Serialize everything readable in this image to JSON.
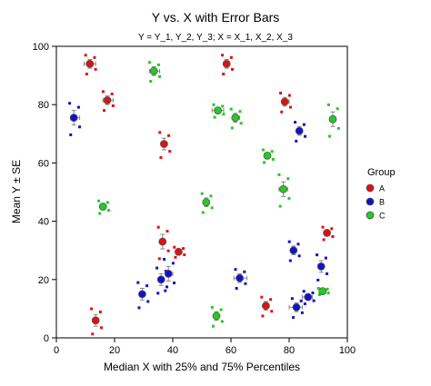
{
  "chart_data": {
    "type": "scatter",
    "title": "Y vs. X with Error Bars",
    "subtitle": "Y = Y_1, Y_2, Y_3; X = X_1, X_2, X_3",
    "xlabel": "Median X with 25% and 75% Percentiles",
    "ylabel": "Mean Y ± SE",
    "xlim": [
      0,
      100
    ],
    "ylim": [
      0,
      100
    ],
    "x_ticks": [
      "0",
      "20",
      "40",
      "60",
      "80",
      "100"
    ],
    "y_ticks": [
      "0",
      "20",
      "40",
      "60",
      "80",
      "100"
    ],
    "grid": false,
    "legend": {
      "title": "Group",
      "position": "right",
      "entries": [
        {
          "label": "A",
          "color": "#dd1111"
        },
        {
          "label": "B",
          "color": "#1111cc"
        },
        {
          "label": "C",
          "color": "#22cc22"
        }
      ]
    },
    "series": [
      {
        "name": "A",
        "color": "#dd1111",
        "points": [
          {
            "x": 11.5,
            "y": 94,
            "xlo": 9.5,
            "xhi": 13.5,
            "se": 1.5
          },
          {
            "x": 17.5,
            "y": 81.5,
            "xlo": 16,
            "xhi": 19.5,
            "se": 1.5
          },
          {
            "x": 58.5,
            "y": 94,
            "xlo": 58,
            "xhi": 59,
            "se": 1.5
          },
          {
            "x": 78.5,
            "y": 81,
            "xlo": 77.5,
            "xhi": 80,
            "se": 1.5
          },
          {
            "x": 37,
            "y": 66.5,
            "xlo": 36.5,
            "xhi": 37.5,
            "se": 2
          },
          {
            "x": 36.5,
            "y": 33,
            "xlo": 36,
            "xhi": 37,
            "se": 2.5
          },
          {
            "x": 42,
            "y": 29.5,
            "xlo": 41,
            "xhi": 43,
            "se": 0.8
          },
          {
            "x": 13.5,
            "y": 6,
            "xlo": 13,
            "xhi": 14.5,
            "se": 2
          },
          {
            "x": 72,
            "y": 11,
            "xlo": 71.5,
            "xhi": 73,
            "se": 1.5
          },
          {
            "x": 93,
            "y": 36,
            "xlo": 92.5,
            "xhi": 93.5,
            "se": 1
          }
        ]
      },
      {
        "name": "B",
        "color": "#1111cc",
        "points": [
          {
            "x": 6,
            "y": 75.5,
            "xlo": 5,
            "xhi": 8,
            "se": 2.5
          },
          {
            "x": 83.5,
            "y": 71,
            "xlo": 83,
            "xhi": 84,
            "se": 1.5
          },
          {
            "x": 29.5,
            "y": 15,
            "xlo": 29,
            "xhi": 30,
            "se": 2
          },
          {
            "x": 36,
            "y": 20,
            "xlo": 35,
            "xhi": 37,
            "se": 2
          },
          {
            "x": 38.5,
            "y": 22,
            "xlo": 37.5,
            "xhi": 40,
            "se": 2.5
          },
          {
            "x": 63,
            "y": 20.5,
            "xlo": 61,
            "xhi": 65.5,
            "se": 1.5
          },
          {
            "x": 81.5,
            "y": 30,
            "xlo": 80.5,
            "xhi": 82.5,
            "se": 1.5
          },
          {
            "x": 82.5,
            "y": 10.5,
            "xlo": 80,
            "xhi": 84.5,
            "se": 1.5
          },
          {
            "x": 86.5,
            "y": 14,
            "xlo": 84.5,
            "xhi": 88,
            "se": 1
          },
          {
            "x": 91,
            "y": 24.5,
            "xlo": 90.5,
            "xhi": 91.5,
            "se": 2
          }
        ]
      },
      {
        "name": "C",
        "color": "#22cc22",
        "points": [
          {
            "x": 33.5,
            "y": 91.5,
            "xlo": 32,
            "xhi": 35.5,
            "se": 1.5
          },
          {
            "x": 55.5,
            "y": 78,
            "xlo": 53.5,
            "xhi": 57.5,
            "se": 1
          },
          {
            "x": 61.5,
            "y": 75.5,
            "xlo": 60.5,
            "xhi": 63,
            "se": 1.5
          },
          {
            "x": 72.5,
            "y": 62.5,
            "xlo": 71.5,
            "xhi": 73.5,
            "se": 1
          },
          {
            "x": 78,
            "y": 51,
            "xlo": 76.5,
            "xhi": 79.5,
            "se": 2.5
          },
          {
            "x": 95,
            "y": 75,
            "xlo": 94.5,
            "xhi": 95.5,
            "se": 2.5
          },
          {
            "x": 16,
            "y": 45,
            "xlo": 15,
            "xhi": 17,
            "se": 1
          },
          {
            "x": 51.5,
            "y": 46.5,
            "xlo": 51,
            "xhi": 52,
            "se": 1.5
          },
          {
            "x": 55,
            "y": 7.5,
            "xlo": 54,
            "xhi": 56,
            "se": 1.5
          },
          {
            "x": 91.5,
            "y": 16,
            "xlo": 91,
            "xhi": 92,
            "se": 0.5
          }
        ]
      }
    ]
  }
}
